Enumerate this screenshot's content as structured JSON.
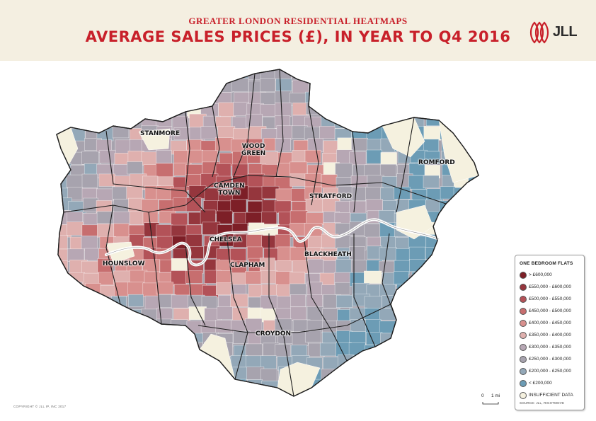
{
  "header": {
    "subtitle": "GREATER LONDON RESIDENTIAL HEATMAPS",
    "title": "AVERAGE SALES PRICES (£), IN YEAR TO Q4 2016",
    "logo_text": "JLL",
    "logo_color": "#c8202a"
  },
  "places": [
    {
      "id": "stanmore",
      "label": "STANMORE"
    },
    {
      "id": "wood-green",
      "label": "WOOD\nGREEN"
    },
    {
      "id": "romford",
      "label": "ROMFORD"
    },
    {
      "id": "camden-town",
      "label": "CAMDEN\nTOWN"
    },
    {
      "id": "stratford",
      "label": "STRATFORD"
    },
    {
      "id": "chelsea",
      "label": "CHELSEA"
    },
    {
      "id": "blackheath",
      "label": "BLACKHEATH"
    },
    {
      "id": "hounslow",
      "label": "HOUNSLOW"
    },
    {
      "id": "clapham",
      "label": "CLAPHAM"
    },
    {
      "id": "croydon",
      "label": "CROYDON"
    }
  ],
  "legend": {
    "title": "ONE BEDROOM FLATS",
    "items": [
      {
        "label": "> £600,000",
        "color": "#7d1f27"
      },
      {
        "label": "£550,000 - £600,000",
        "color": "#95363d"
      },
      {
        "label": "£500,000 - £550,000",
        "color": "#b35258"
      },
      {
        "label": "£450,000 - £500,000",
        "color": "#c76e6f"
      },
      {
        "label": "£400,000 - £450,000",
        "color": "#d8908e"
      },
      {
        "label": "£350,000 - £400,000",
        "color": "#dfb0ae"
      },
      {
        "label": "£300,000 - £350,000",
        "color": "#b7a7b4"
      },
      {
        "label": "£250,000 - £300,000",
        "color": "#a7a3ae"
      },
      {
        "label": "£200,000 - £250,000",
        "color": "#93a8b8"
      },
      {
        "label": "< £200,000",
        "color": "#6c9cb5"
      },
      {
        "label": "INSUFFICIENT DATA",
        "color": "#f5f1df"
      }
    ],
    "source": "SOURCE: JLL, RIGHTMOVE"
  },
  "scale": {
    "start": "0",
    "end": "1 mi"
  },
  "copyright": "COPYRIGHT © JLL IP, INC 2017",
  "river_color": "#ffffff"
}
